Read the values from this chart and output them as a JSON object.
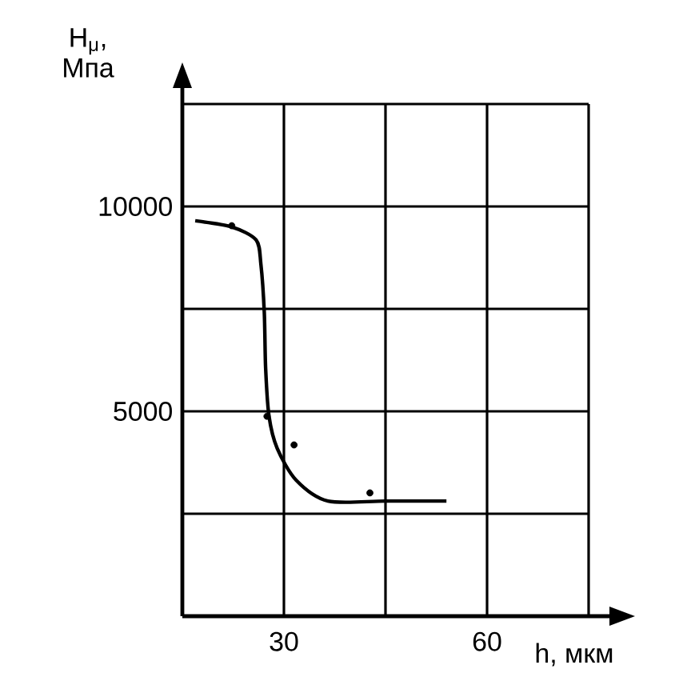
{
  "chart_data": {
    "type": "line",
    "xlabel": "h, мкм",
    "ylabel": "H$_{μ}$, Мпа",
    "xlim": [
      15,
      75
    ],
    "ylim": [
      0,
      12500
    ],
    "xticks": [
      {
        "value": 30,
        "label": "30"
      },
      {
        "value": 45,
        "label": null
      },
      {
        "value": 60,
        "label": "60"
      },
      {
        "value": 75,
        "label": null
      }
    ],
    "yticks": [
      {
        "value": 2500,
        "label": null
      },
      {
        "value": 5000,
        "label": "5000"
      },
      {
        "value": 7500,
        "label": null
      },
      {
        "value": 10000,
        "label": "10000"
      },
      {
        "value": 12500,
        "label": null
      }
    ],
    "grid": true,
    "series": [
      {
        "color": "#000000",
        "x": [
          16.9,
          22.3,
          25.9,
          26.6,
          27.1,
          27.3,
          27.8,
          29,
          31.8,
          36.5,
          45,
          54
        ],
        "values": [
          9650,
          9500,
          9180,
          8590,
          7420,
          6050,
          4880,
          4100,
          3320,
          2810,
          2810,
          2810
        ]
      },
      {
        "type": "scatter",
        "color": "#000000",
        "x": [
          22.3,
          27.5,
          31.5,
          42.7
        ],
        "values": [
          9530,
          4880,
          4180,
          3010
        ]
      }
    ]
  }
}
